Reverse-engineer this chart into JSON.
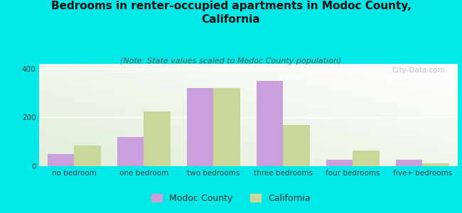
{
  "title": "Bedrooms in renter-occupied apartments in Modoc County,\nCalifornia",
  "subtitle": "(Note: State values scaled to Modoc County population)",
  "categories": [
    "no bedroom",
    "one bedroom",
    "two bedrooms",
    "three bedrooms",
    "four bedrooms",
    "five+ bedrooms"
  ],
  "modoc_values": [
    50,
    120,
    320,
    350,
    25,
    25
  ],
  "california_values": [
    85,
    225,
    320,
    170,
    65,
    12
  ],
  "modoc_color": "#c9a0dc",
  "california_color": "#c8d89a",
  "background_outer": "#00e8e8",
  "ylim": [
    0,
    420
  ],
  "yticks": [
    0,
    200,
    400
  ],
  "bar_width": 0.38,
  "title_fontsize": 11,
  "subtitle_fontsize": 8,
  "tick_fontsize": 7.5,
  "legend_fontsize": 9,
  "watermark": "City-Data.com"
}
